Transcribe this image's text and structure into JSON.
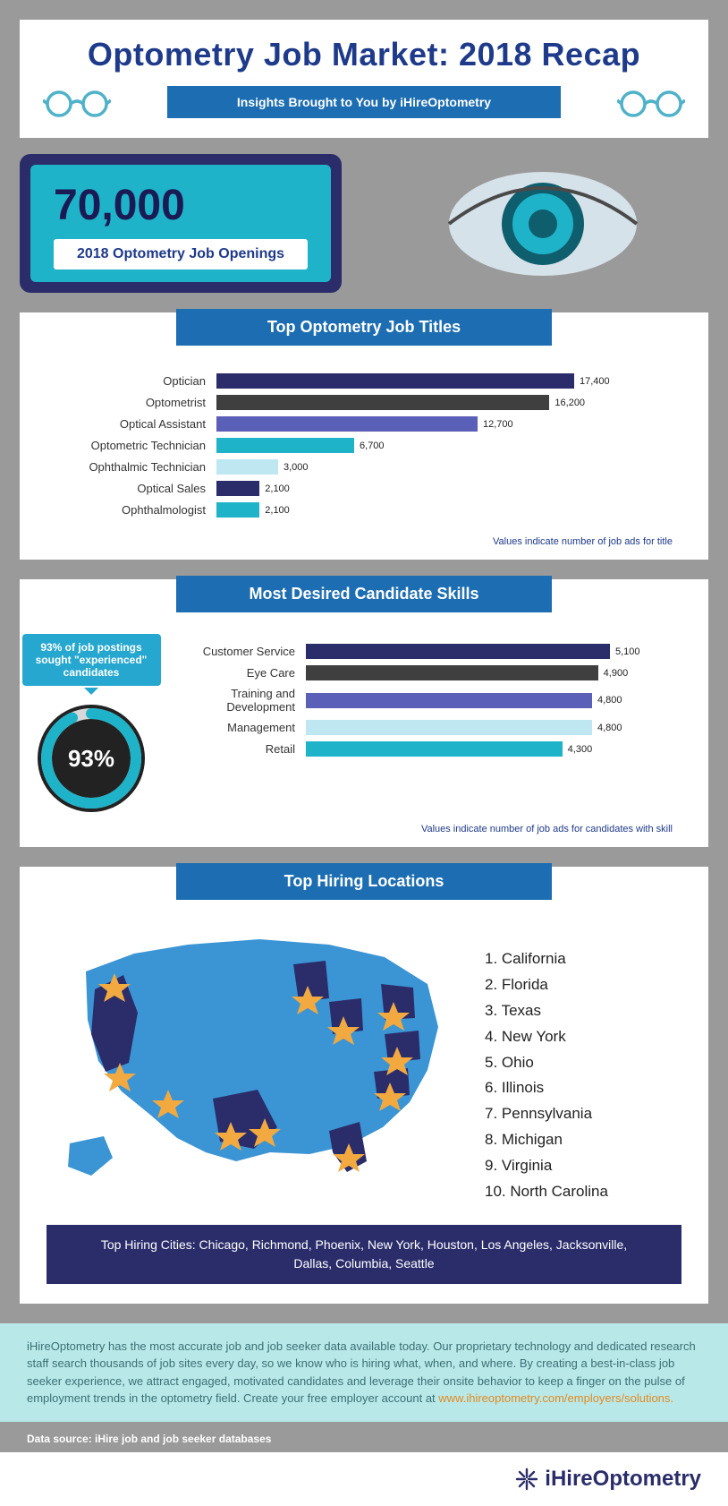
{
  "colors": {
    "page_bg": "#9a9a9a",
    "navy": "#2b2d6b",
    "title_blue": "#1e3a8a",
    "ribbon_blue": "#1c6db2",
    "ribbon_dark": "#155a96",
    "teal": "#1fb3c9",
    "light_teal": "#b9e8e9",
    "orange": "#e28b1f"
  },
  "header": {
    "title": "Optometry Job Market: 2018 Recap",
    "subtitle": "Insights Brought to You by iHireOptometry",
    "glasses_color": "#4fb2c9"
  },
  "stat": {
    "number": "70,000",
    "label": "2018 Optometry Job Openings"
  },
  "eye": {
    "outer": "#d6e2e9",
    "dark": "#0e5e6d",
    "mid": "#1fb3c9",
    "pupil": "#0e5e6d"
  },
  "chart_titles": {
    "jobs": "Top Optometry Job Titles",
    "skills": "Most Desired Candidate Skills",
    "locations": "Top Hiring Locations"
  },
  "jobs_chart": {
    "max": 17400,
    "note": "Values indicate number of job ads for title",
    "bars": [
      {
        "label": "Optician",
        "value": 17400,
        "display": "17,400",
        "color": "#2b2d6b"
      },
      {
        "label": "Optometrist",
        "value": 16200,
        "display": "16,200",
        "color": "#3f3f3f"
      },
      {
        "label": "Optical Assistant",
        "value": 12700,
        "display": "12,700",
        "color": "#5a5fb7"
      },
      {
        "label": "Optometric Technician",
        "value": 6700,
        "display": "6,700",
        "color": "#1fb3c9"
      },
      {
        "label": "Ophthalmic Technician",
        "value": 3000,
        "display": "3,000",
        "color": "#bfe7f2"
      },
      {
        "label": "Optical Sales",
        "value": 2100,
        "display": "2,100",
        "color": "#2b2d6b"
      },
      {
        "label": "Ophthalmologist",
        "value": 2100,
        "display": "2,100",
        "color": "#1fb3c9"
      }
    ]
  },
  "skills_chart": {
    "max": 5100,
    "note": "Values indicate number of job ads for candidates with skill",
    "bars": [
      {
        "label": "Customer Service",
        "value": 5100,
        "display": "5,100",
        "color": "#2b2d6b"
      },
      {
        "label": "Eye Care",
        "value": 4900,
        "display": "4,900",
        "color": "#3f3f3f"
      },
      {
        "label": "Training and Development",
        "value": 4800,
        "display": "4,800",
        "color": "#5a5fb7"
      },
      {
        "label": "Management",
        "value": 4800,
        "display": "4,800",
        "color": "#bfe7f2"
      },
      {
        "label": "Retail",
        "value": 4300,
        "display": "4,300",
        "color": "#1fb3c9"
      }
    ]
  },
  "donut": {
    "callout": "93% of job postings sought \"experienced\" candidates",
    "pct_label": "93%",
    "pct_value": 93,
    "bg": "#222",
    "ring": "#1fb3c9",
    "track": "#d8d8d8"
  },
  "locations": {
    "list": [
      "California",
      "Florida",
      "Texas",
      "New York",
      "Ohio",
      "Illinois",
      "Pennsylvania",
      "Michigan",
      "Virginia",
      "North Carolina"
    ],
    "map": {
      "fill_light": "#3b95d4",
      "fill_dark": "#2b2d6b",
      "star": "#f2a940",
      "dark_states_note": "CA, TX, FL, NY, OH, IL, PA, MI, VA, NC shown dark with stars"
    },
    "cities_label": "Top Hiring Cities: Chicago, Richmond, Phoenix, New York, Houston, Los Angeles, Jacksonville, Dallas, Columbia, Seattle"
  },
  "footer": {
    "blurb": "iHireOptometry has the most accurate job and job seeker data available today. Our proprietary technology and dedicated research staff search thousands of job sites every day, so we know who is hiring what, when, and where. By creating a best-in-class job seeker experience, we attract engaged, motivated candidates and leverage their onsite behavior to keep a finger on the pulse of employment trends in the optometry field. Create your free employer account at ",
    "link_text": "www.ihireoptometry.com/employers/solutions.",
    "source": "Data source: iHire job and job seeker databases",
    "logo": "iHireOptometry"
  }
}
